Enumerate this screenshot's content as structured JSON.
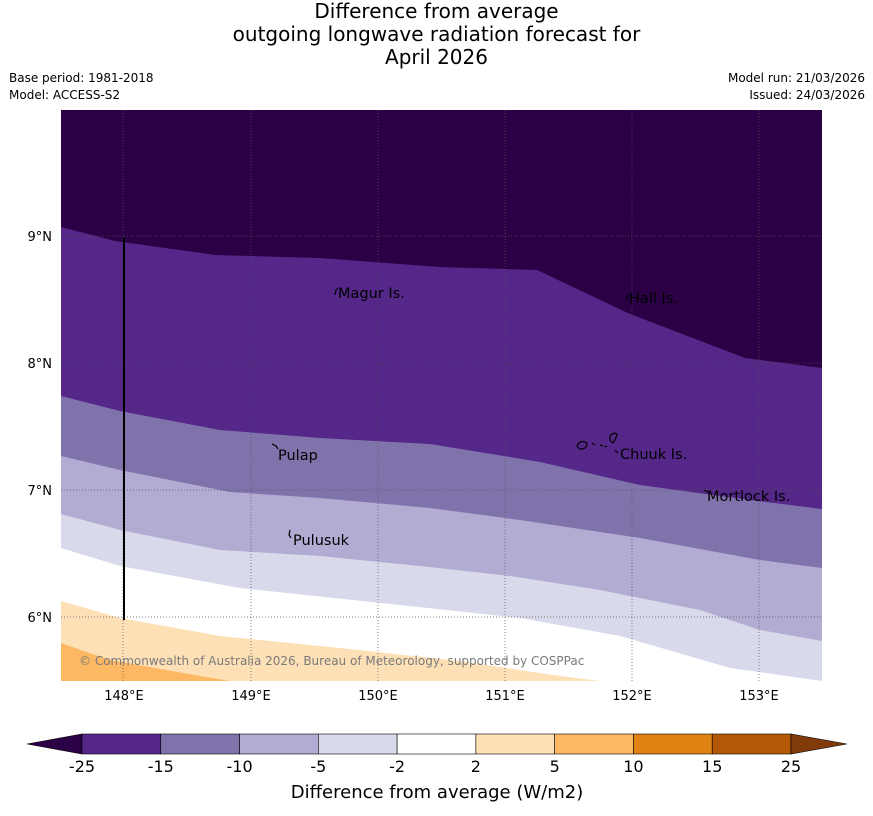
{
  "title": {
    "line1": "Difference from average",
    "line2": "outgoing longwave radiation forecast for",
    "line3": "April 2026"
  },
  "meta": {
    "base_period": "Base period: 1981-2018",
    "model": "Model: ACCESS-S2",
    "model_run": "Model run: 21/03/2026",
    "issued": "Issued: 24/03/2026"
  },
  "map": {
    "lat_labels": [
      "9°N",
      "8°N",
      "7°N",
      "6°N"
    ],
    "lon_labels": [
      "148°E",
      "149°E",
      "150°E",
      "151°E",
      "152°E",
      "153°E"
    ],
    "places": [
      "Magur Is.",
      "Hall Is.",
      "Pulap",
      "Chuuk Is.",
      "Mortlock Is.",
      "Pulusuk"
    ],
    "copyright": "© Commonwealth of Australia 2026, Bureau of Meteorology, supported by COSPPac"
  },
  "colorbar": {
    "ticks": [
      "-25",
      "-15",
      "-10",
      "-5",
      "-2",
      "2",
      "5",
      "10",
      "15",
      "25"
    ],
    "colors": [
      "#2b0045",
      "#542788",
      "#8073ac",
      "#b2abd2",
      "#d8daeb",
      "#ffffff",
      "#fee0b6",
      "#fdb863",
      "#e08214",
      "#b35806",
      "#7f3b08"
    ],
    "label": "Difference from average (W/m2)"
  }
}
